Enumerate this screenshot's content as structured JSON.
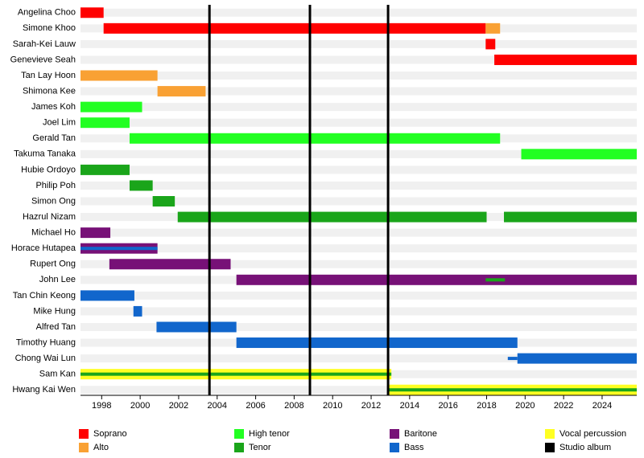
{
  "chart_data": {
    "type": "timeline",
    "categories": [
      "Angelina Choo",
      "Simone Khoo",
      "Sarah-Kei Lauw",
      "Genevieve Seah",
      "Tan Lay Hoon",
      "Shimona Kee",
      "James Koh",
      "Joel Lim",
      "Gerald Tan",
      "Takuma Tanaka",
      "Hubie Ordoyo",
      "Philip Poh",
      "Simon Ong",
      "Hazrul Nizam",
      "Michael Ho",
      "Horace Hutapea",
      "Rupert Ong",
      "John Lee",
      "Tan Chin Keong",
      "Mike Hung",
      "Alfred Tan",
      "Timothy Huang",
      "Chong Wai Lun",
      "Sam Kan",
      "Hwang Kai Wen"
    ],
    "xlim": [
      1996.9,
      2025.8
    ],
    "xticks": [
      1998,
      2000,
      2002,
      2004,
      2006,
      2008,
      2010,
      2012,
      2014,
      2016,
      2018,
      2020,
      2022,
      2024
    ],
    "series": [
      {
        "name": "Soprano",
        "color": "#ff0000",
        "bars": [
          {
            "member": "Angelina Choo",
            "start": 1996.9,
            "end": 1998.1
          },
          {
            "member": "Simone Khoo",
            "start": 1998.1,
            "end": 2017.95
          },
          {
            "member": "Sarah-Kei Lauw",
            "start": 2017.95,
            "end": 2018.45
          },
          {
            "member": "Genevieve Seah",
            "start": 2018.4,
            "end": 2025.8
          }
        ]
      },
      {
        "name": "Alto",
        "color": "#f9a134",
        "bars": [
          {
            "member": "Simone Khoo",
            "start": 2017.95,
            "end": 2018.7
          },
          {
            "member": "Tan Lay Hoon",
            "start": 1996.9,
            "end": 2000.9
          },
          {
            "member": "Shimona Kee",
            "start": 2000.9,
            "end": 2003.4
          }
        ]
      },
      {
        "name": "High tenor",
        "color": "#22ff22",
        "bars": [
          {
            "member": "James Koh",
            "start": 1996.9,
            "end": 2000.1
          },
          {
            "member": "Joel Lim",
            "start": 1996.9,
            "end": 1999.45
          },
          {
            "member": "Gerald Tan",
            "start": 1999.45,
            "end": 2018.7
          },
          {
            "member": "Takuma Tanaka",
            "start": 2019.8,
            "end": 2025.8
          }
        ]
      },
      {
        "name": "Tenor",
        "color": "#1aa51a",
        "bars": [
          {
            "member": "Hubie Ordoyo",
            "start": 1996.9,
            "end": 1999.45
          },
          {
            "member": "Philip Poh",
            "start": 1999.45,
            "end": 2000.65
          },
          {
            "member": "Simon Ong",
            "start": 2000.65,
            "end": 2001.8
          },
          {
            "member": "Hazrul Nizam",
            "start": 2001.95,
            "end": 2018
          },
          {
            "member": "Hazrul Nizam",
            "start": 2018.9,
            "end": 2025.8
          },
          {
            "member": "John Lee",
            "start": 2017.95,
            "end": 2018.95,
            "thin": true
          },
          {
            "member": "Sam Kan",
            "start": 1996.9,
            "end": 2013.05,
            "thin": true
          },
          {
            "member": "Hwang Kai Wen",
            "start": 2012.85,
            "end": 2025.8,
            "thin": true
          }
        ]
      },
      {
        "name": "Baritone",
        "color": "#771177",
        "bars": [
          {
            "member": "Michael Ho",
            "start": 1996.9,
            "end": 1998.45
          },
          {
            "member": "Horace Hutapea",
            "start": 1996.9,
            "end": 2000.9
          },
          {
            "member": "Rupert Ong",
            "start": 1998.4,
            "end": 2004.7
          },
          {
            "member": "John Lee",
            "start": 2005.0,
            "end": 2025.8
          }
        ]
      },
      {
        "name": "Bass",
        "color": "#1166cc",
        "bars": [
          {
            "member": "Horace Hutapea",
            "start": 1996.9,
            "end": 2000.9,
            "thin": true
          },
          {
            "member": "Tan Chin Keong",
            "start": 1996.9,
            "end": 1999.7
          },
          {
            "member": "Mike Hung",
            "start": 1999.65,
            "end": 2000.1
          },
          {
            "member": "Alfred Tan",
            "start": 2000.85,
            "end": 2005.0
          },
          {
            "member": "Timothy Huang",
            "start": 2005.0,
            "end": 2019.6
          },
          {
            "member": "Chong Wai Lun",
            "start": 2019.1,
            "end": 2019.6,
            "thin": true
          },
          {
            "member": "Chong Wai Lun",
            "start": 2019.6,
            "end": 2025.8
          }
        ]
      },
      {
        "name": "Vocal percussion",
        "color": "#ffff22",
        "bars": [
          {
            "member": "Sam Kan",
            "start": 1996.9,
            "end": 2013.05
          },
          {
            "member": "Hwang Kai Wen",
            "start": 2012.85,
            "end": 2025.8
          }
        ]
      },
      {
        "name": "Studio album",
        "color": "#000000",
        "lines": [
          2003.6,
          2008.82,
          2012.88
        ]
      }
    ]
  }
}
